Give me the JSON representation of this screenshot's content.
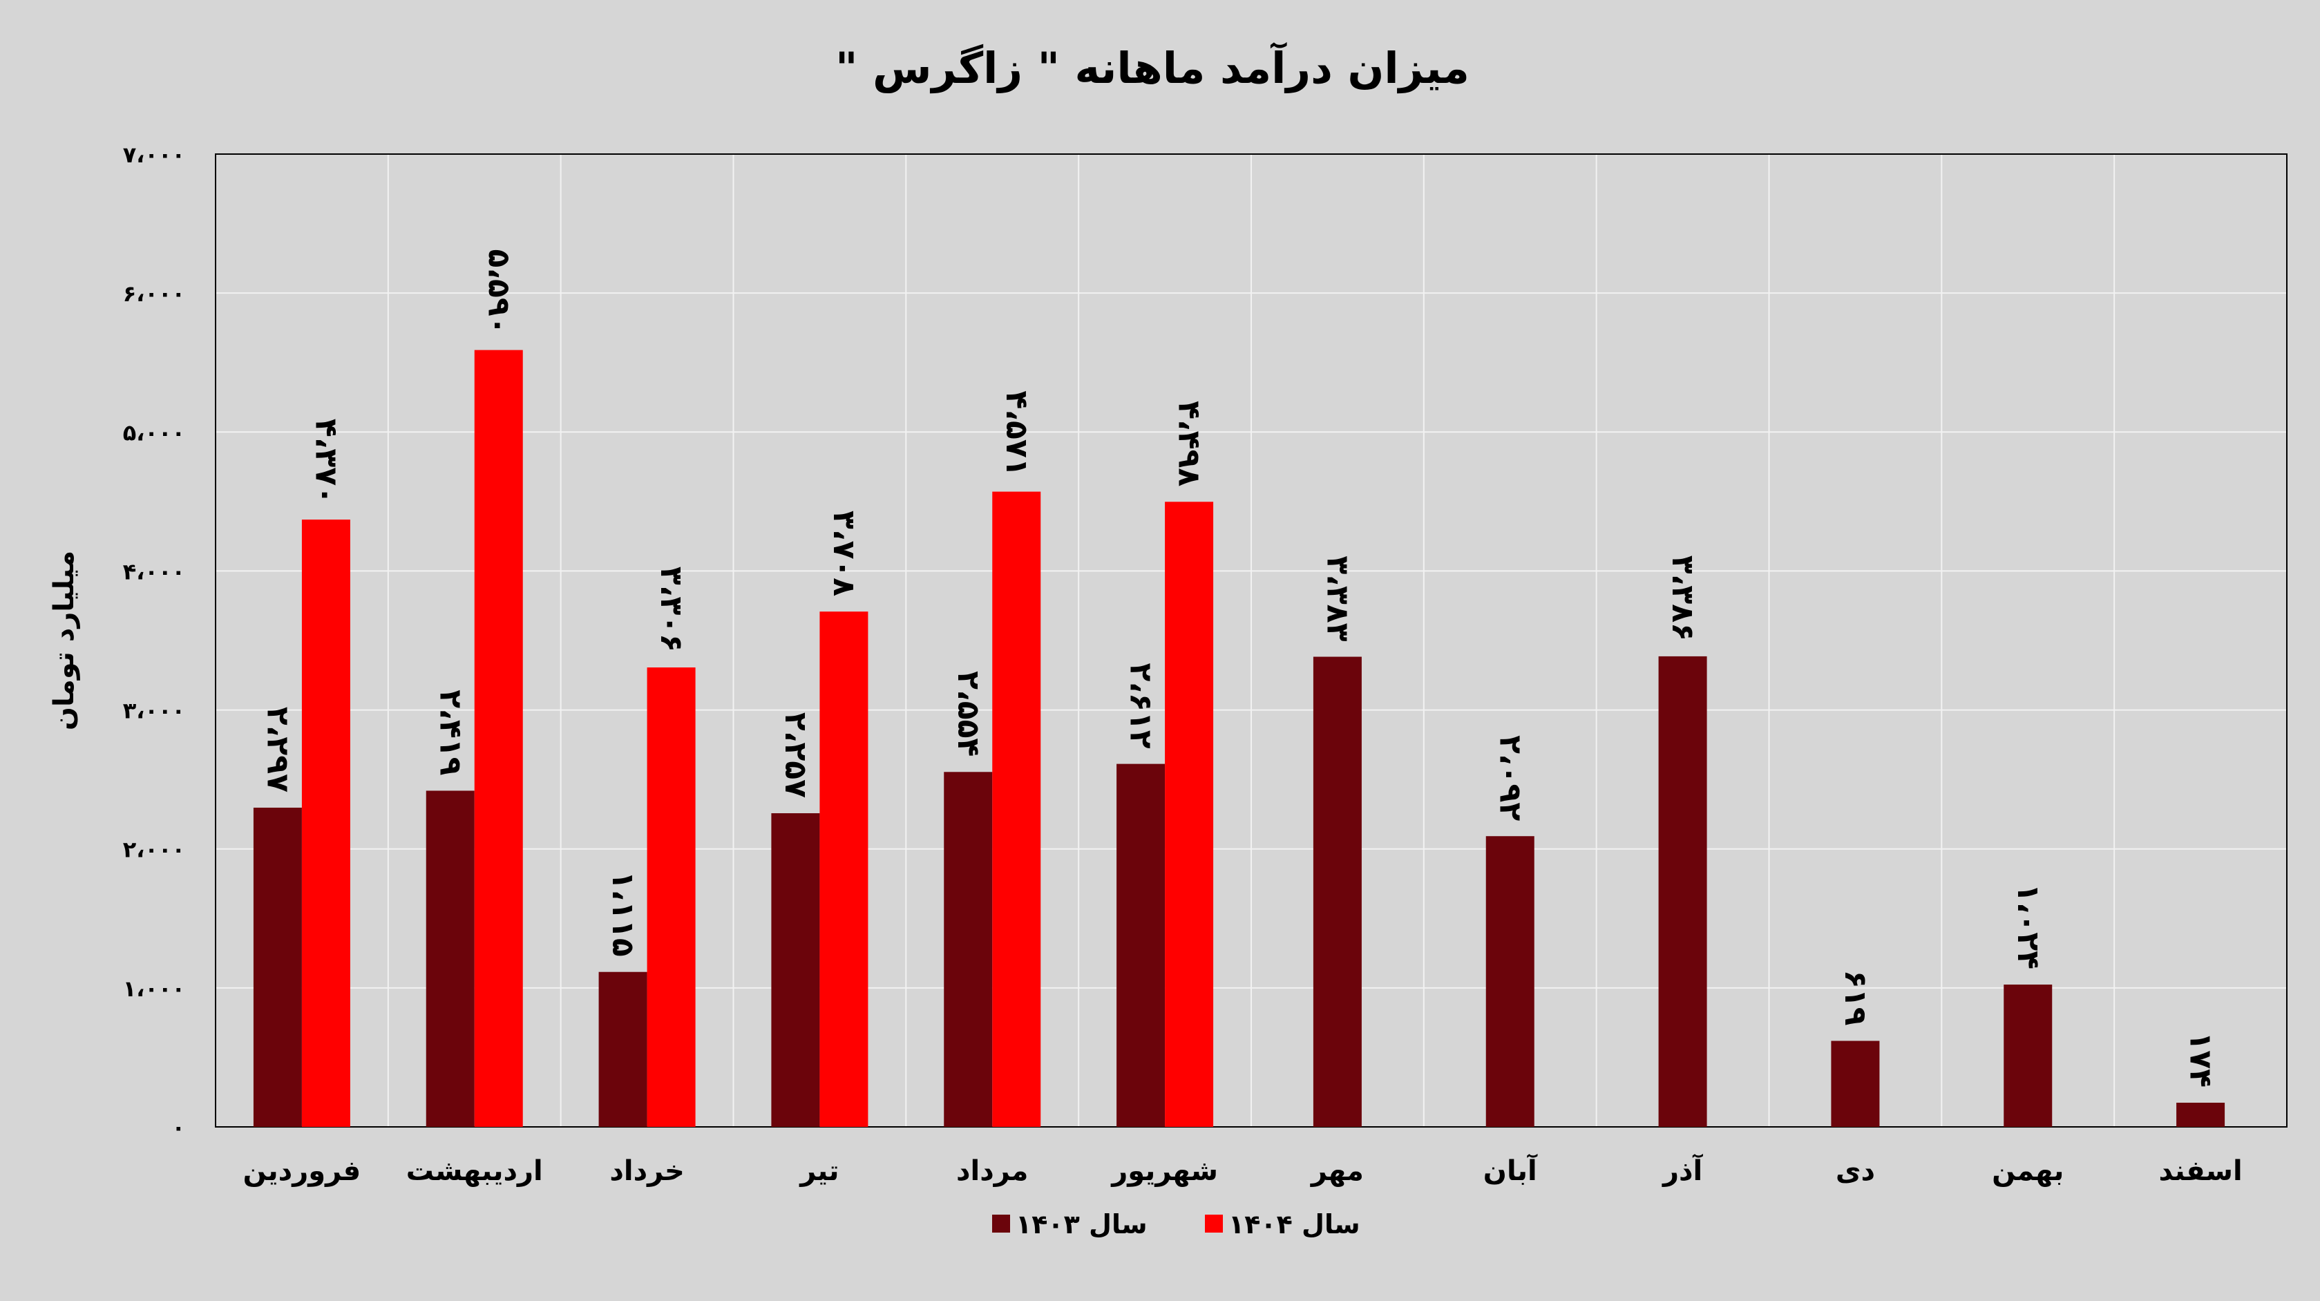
{
  "chart_data": {
    "type": "bar",
    "title": "میزان درآمد ماهانه \" زاگرس \"",
    "ylabel": "میلیارد تومان",
    "xlabel": "",
    "ylim": [
      0,
      7000
    ],
    "yticks": [
      0,
      1000,
      2000,
      3000,
      4000,
      5000,
      6000,
      7000
    ],
    "ytick_labels": [
      "۰",
      "۱،۰۰۰",
      "۲،۰۰۰",
      "۳،۰۰۰",
      "۴،۰۰۰",
      "۵،۰۰۰",
      "۶،۰۰۰",
      "۷،۰۰۰"
    ],
    "grid": true,
    "legend_position": "bottom",
    "categories": [
      "فروردین",
      "اردیبهشت",
      "خرداد",
      "تیر",
      "مرداد",
      "شهریور",
      "مهر",
      "آبان",
      "آذر",
      "دی",
      "بهمن",
      "اسفند"
    ],
    "series": [
      {
        "name": "سال ۱۴۰۳",
        "color": "#6b040b",
        "values": [
          2297,
          2419,
          1115,
          2257,
          2554,
          2612,
          3383,
          2092,
          3386,
          619,
          1024,
          174
        ],
        "labels": [
          "۲،۲۹۷",
          "۲،۴۱۹",
          "۱،۱۱۵",
          "۲،۲۵۷",
          "۲،۵۵۴",
          "۲،۶۱۲",
          "۳،۳۸۳",
          "۲،۰۹۲",
          "۳،۳۸۶",
          "۶۱۹",
          "۱،۰۲۴",
          "۱۷۴"
        ]
      },
      {
        "name": "سال ۱۴۰۴",
        "color": "#ff0000",
        "values": [
          4370,
          5590,
          3306,
          3708,
          4571,
          4498,
          null,
          null,
          null,
          null,
          null,
          null
        ],
        "labels": [
          "۴،۳۷۰",
          "۵،۵۹۰",
          "۳،۳۰۶",
          "۳،۷۰۸",
          "۴،۵۷۱",
          "۴،۴۹۸",
          null,
          null,
          null,
          null,
          null,
          null
        ]
      }
    ]
  }
}
